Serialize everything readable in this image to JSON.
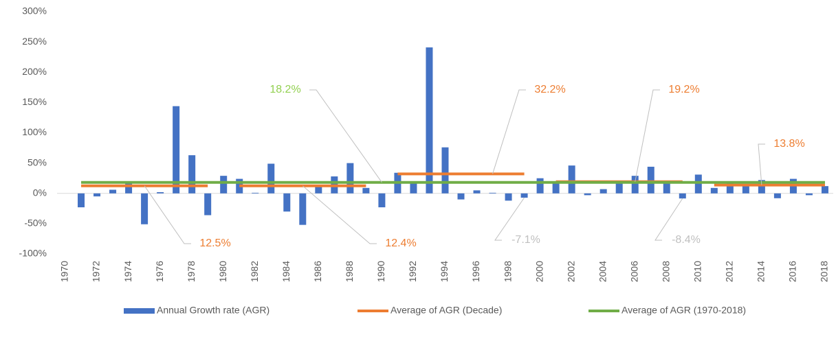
{
  "chart_data": {
    "type": "bar",
    "categories": [
      "1970",
      null,
      "1972",
      null,
      "1974",
      null,
      "1976",
      null,
      "1978",
      null,
      "1980",
      null,
      "1982",
      null,
      "1984",
      null,
      "1986",
      null,
      "1988",
      null,
      "1990",
      null,
      "1992",
      null,
      "1994",
      null,
      "1996",
      null,
      "1998",
      null,
      "2000",
      null,
      "2002",
      null,
      "2004",
      null,
      "2006",
      null,
      "2008",
      null,
      "2010",
      null,
      "2012",
      null,
      "2014",
      null,
      "2016",
      null,
      "2018"
    ],
    "series": [
      {
        "name": "Annual Growth rate (AGR)",
        "type": "bar",
        "color": "#4472c4",
        "values": [
          null,
          -23,
          -5,
          6,
          17,
          -51,
          2,
          144,
          63,
          -36,
          29,
          24,
          1,
          49,
          -30,
          -52,
          14,
          28,
          50,
          9,
          -23,
          34,
          17,
          241,
          76,
          -10,
          5,
          1,
          -12,
          -7.1,
          25,
          17,
          46,
          -3,
          7,
          19,
          29,
          44,
          18,
          -8.4,
          31,
          9,
          20,
          15,
          22,
          -8,
          24,
          -3,
          12
        ],
        "value_labels": [
          null,
          null,
          null,
          null,
          null,
          null,
          null,
          null,
          null,
          null,
          null,
          null,
          null,
          null,
          null,
          null,
          null,
          null,
          null,
          null,
          null,
          null,
          null,
          null,
          null,
          null,
          null,
          null,
          null,
          "-7.1%",
          null,
          null,
          null,
          null,
          null,
          null,
          null,
          null,
          null,
          "-8.4%",
          null,
          null,
          null,
          null,
          null,
          null,
          null,
          null,
          null
        ],
        "label_color": "#bfbfbf"
      },
      {
        "name": "Average of AGR (Decade)",
        "type": "line",
        "color": "#ed7d31",
        "values": [
          null,
          12.5,
          12.5,
          12.5,
          12.5,
          12.5,
          12.5,
          12.5,
          12.5,
          12.5,
          null,
          12.4,
          12.4,
          12.4,
          12.4,
          12.4,
          12.4,
          12.4,
          12.4,
          12.4,
          null,
          32.2,
          32.2,
          32.2,
          32.2,
          32.2,
          32.2,
          32.2,
          32.2,
          32.2,
          null,
          19.2,
          19.2,
          19.2,
          19.2,
          19.2,
          19.2,
          19.2,
          19.2,
          19.2,
          null,
          13.8,
          13.8,
          13.8,
          13.8,
          13.8,
          13.8,
          13.8,
          13.8
        ],
        "value_labels": [
          null,
          null,
          null,
          null,
          null,
          "12.5%",
          null,
          null,
          null,
          null,
          null,
          null,
          null,
          null,
          null,
          "12.4%",
          null,
          null,
          null,
          null,
          null,
          null,
          null,
          null,
          null,
          null,
          null,
          "32.2%",
          null,
          null,
          null,
          null,
          null,
          null,
          null,
          null,
          "19.2%",
          null,
          null,
          null,
          null,
          null,
          null,
          null,
          "13.8%",
          null,
          null,
          null,
          null
        ],
        "label_color": "#ed7d31"
      },
      {
        "name": "Average of AGR (1970-2018)",
        "type": "line",
        "color": "#70ad47",
        "values": [
          null,
          18.2,
          18.2,
          18.2,
          18.2,
          18.2,
          18.2,
          18.2,
          18.2,
          18.2,
          18.2,
          18.2,
          18.2,
          18.2,
          18.2,
          18.2,
          18.2,
          18.2,
          18.2,
          18.2,
          18.2,
          18.2,
          18.2,
          18.2,
          18.2,
          18.2,
          18.2,
          18.2,
          18.2,
          18.2,
          18.2,
          18.2,
          18.2,
          18.2,
          18.2,
          18.2,
          18.2,
          18.2,
          18.2,
          18.2,
          18.2,
          18.2,
          18.2,
          18.2,
          18.2,
          18.2,
          18.2,
          18.2,
          18.2
        ],
        "value_labels": [
          null,
          null,
          null,
          null,
          null,
          null,
          null,
          null,
          null,
          null,
          null,
          null,
          null,
          null,
          null,
          null,
          null,
          null,
          null,
          null,
          "18.2%",
          null,
          null,
          null,
          null,
          null,
          null,
          null,
          null,
          null,
          null,
          null,
          null,
          null,
          null,
          null,
          null,
          null,
          null,
          null,
          null,
          null,
          null,
          null,
          null,
          null,
          null,
          null,
          null
        ],
        "label_color": "#92d050"
      }
    ],
    "ylim": [
      -100,
      300
    ],
    "yticks": [
      {
        "value": -100,
        "label": "-100%"
      },
      {
        "value": -50,
        "label": "-50%"
      },
      {
        "value": 0,
        "label": "0%"
      },
      {
        "value": 50,
        "label": "50%"
      },
      {
        "value": 100,
        "label": "100%"
      },
      {
        "value": 150,
        "label": "150%"
      },
      {
        "value": 200,
        "label": "200%"
      },
      {
        "value": 250,
        "label": "250%"
      },
      {
        "value": 300,
        "label": "300%"
      }
    ],
    "grid": false,
    "legend": "bottom"
  }
}
